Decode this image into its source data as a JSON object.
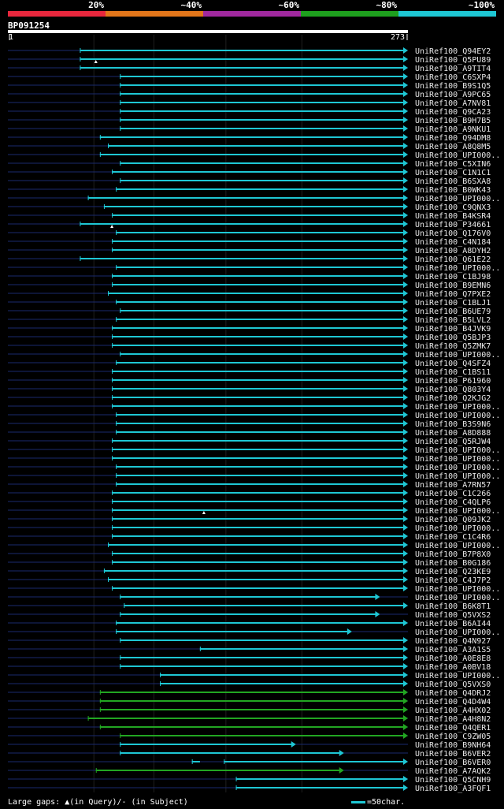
{
  "scale": {
    "labels": [
      "20%",
      "~40%",
      "~60%",
      "~80%",
      "~100%"
    ],
    "colors": [
      "#e8273d",
      "#e2761a",
      "#a0299e",
      "#1e9f1e",
      "#1ec7d4"
    ]
  },
  "query": {
    "id": "BP091254",
    "start": "1",
    "end": "273"
  },
  "colors": {
    "teal": "#1ec7d4",
    "green": "#22a622",
    "dark": "#1a2a6e"
  },
  "hits": [
    {
      "label": "UniRef100_Q94EY2",
      "segments": [
        [
          0.18,
          1.0,
          "teal"
        ]
      ],
      "marks": []
    },
    {
      "label": "UniRef100_Q5PU89",
      "segments": [
        [
          0.18,
          1.0,
          "teal"
        ]
      ],
      "marks": [
        0.22
      ]
    },
    {
      "label": "UniRef100_A9TIT4",
      "segments": [
        [
          0.18,
          1.0,
          "teal"
        ]
      ],
      "marks": []
    },
    {
      "label": "UniRef100_C6SXP4",
      "segments": [
        [
          0.28,
          1.0,
          "teal"
        ]
      ],
      "marks": []
    },
    {
      "label": "UniRef100_B9S1Q5",
      "segments": [
        [
          0.28,
          1.0,
          "teal"
        ]
      ],
      "marks": []
    },
    {
      "label": "UniRef100_A9PC65",
      "segments": [
        [
          0.28,
          1.0,
          "teal"
        ]
      ],
      "marks": []
    },
    {
      "label": "UniRef100_A7NV81",
      "segments": [
        [
          0.28,
          1.0,
          "teal"
        ]
      ],
      "marks": []
    },
    {
      "label": "UniRef100_Q9CA23",
      "segments": [
        [
          0.28,
          1.0,
          "teal"
        ]
      ],
      "marks": []
    },
    {
      "label": "UniRef100_B9H7B5",
      "segments": [
        [
          0.28,
          1.0,
          "teal"
        ]
      ],
      "marks": []
    },
    {
      "label": "UniRef100_A9NKU1",
      "segments": [
        [
          0.28,
          1.0,
          "teal"
        ]
      ],
      "marks": []
    },
    {
      "label": "UniRef100_Q94DM8",
      "segments": [
        [
          0.23,
          1.0,
          "teal"
        ]
      ],
      "marks": []
    },
    {
      "label": "UniRef100_A8Q8M5",
      "segments": [
        [
          0.25,
          1.0,
          "teal"
        ]
      ],
      "marks": []
    },
    {
      "label": "UniRef100_UPI000..",
      "segments": [
        [
          0.23,
          1.0,
          "teal"
        ]
      ],
      "marks": []
    },
    {
      "label": "UniRef100_C5XIN6",
      "segments": [
        [
          0.28,
          1.0,
          "teal"
        ]
      ],
      "marks": []
    },
    {
      "label": "UniRef100_C1N1C1",
      "segments": [
        [
          0.26,
          1.0,
          "teal"
        ]
      ],
      "marks": []
    },
    {
      "label": "UniRef100_B6SXA8",
      "segments": [
        [
          0.28,
          1.0,
          "teal"
        ]
      ],
      "marks": []
    },
    {
      "label": "UniRef100_B0WK43",
      "segments": [
        [
          0.27,
          1.0,
          "teal"
        ]
      ],
      "marks": []
    },
    {
      "label": "UniRef100_UPI000..",
      "segments": [
        [
          0.2,
          1.0,
          "teal"
        ]
      ],
      "marks": []
    },
    {
      "label": "UniRef100_C9QNX3",
      "segments": [
        [
          0.24,
          1.0,
          "teal"
        ]
      ],
      "marks": []
    },
    {
      "label": "UniRef100_B4KSR4",
      "segments": [
        [
          0.26,
          1.0,
          "teal"
        ]
      ],
      "marks": []
    },
    {
      "label": "UniRef100_P34661",
      "segments": [
        [
          0.18,
          1.0,
          "teal"
        ]
      ],
      "marks": [
        0.26
      ]
    },
    {
      "label": "UniRef100_Q176V0",
      "segments": [
        [
          0.27,
          1.0,
          "teal"
        ]
      ],
      "marks": []
    },
    {
      "label": "UniRef100_C4N184",
      "segments": [
        [
          0.26,
          1.0,
          "teal"
        ]
      ],
      "marks": []
    },
    {
      "label": "UniRef100_A8DYH2",
      "segments": [
        [
          0.26,
          1.0,
          "teal"
        ]
      ],
      "marks": []
    },
    {
      "label": "UniRef100_Q61E22",
      "segments": [
        [
          0.18,
          1.0,
          "teal"
        ]
      ],
      "marks": []
    },
    {
      "label": "UniRef100_UPI000..",
      "segments": [
        [
          0.27,
          1.0,
          "teal"
        ]
      ],
      "marks": []
    },
    {
      "label": "UniRef100_C1BJ98",
      "segments": [
        [
          0.26,
          1.0,
          "teal"
        ]
      ],
      "marks": []
    },
    {
      "label": "UniRef100_B9EMN6",
      "segments": [
        [
          0.26,
          1.0,
          "teal"
        ]
      ],
      "marks": []
    },
    {
      "label": "UniRef100_Q7PXE2",
      "segments": [
        [
          0.25,
          1.0,
          "teal"
        ]
      ],
      "marks": []
    },
    {
      "label": "UniRef100_C1BLJ1",
      "segments": [
        [
          0.27,
          1.0,
          "teal"
        ]
      ],
      "marks": []
    },
    {
      "label": "UniRef100_B6UE79",
      "segments": [
        [
          0.28,
          1.0,
          "teal"
        ]
      ],
      "marks": []
    },
    {
      "label": "UniRef100_B5LVL2",
      "segments": [
        [
          0.27,
          1.0,
          "teal"
        ]
      ],
      "marks": []
    },
    {
      "label": "UniRef100_B4JVK9",
      "segments": [
        [
          0.26,
          1.0,
          "teal"
        ]
      ],
      "marks": []
    },
    {
      "label": "UniRef100_Q5BJP3",
      "segments": [
        [
          0.26,
          1.0,
          "teal"
        ]
      ],
      "marks": []
    },
    {
      "label": "UniRef100_Q5ZMK7",
      "segments": [
        [
          0.26,
          1.0,
          "teal"
        ]
      ],
      "marks": []
    },
    {
      "label": "UniRef100_UPI000..",
      "segments": [
        [
          0.28,
          1.0,
          "teal"
        ]
      ],
      "marks": []
    },
    {
      "label": "UniRef100_Q4SFZ4",
      "segments": [
        [
          0.27,
          1.0,
          "teal"
        ]
      ],
      "marks": []
    },
    {
      "label": "UniRef100_C1BS11",
      "segments": [
        [
          0.26,
          1.0,
          "teal"
        ]
      ],
      "marks": []
    },
    {
      "label": "UniRef100_P61960",
      "segments": [
        [
          0.26,
          1.0,
          "teal"
        ]
      ],
      "marks": []
    },
    {
      "label": "UniRef100_Q803Y4",
      "segments": [
        [
          0.26,
          1.0,
          "teal"
        ]
      ],
      "marks": []
    },
    {
      "label": "UniRef100_Q2KJG2",
      "segments": [
        [
          0.26,
          1.0,
          "teal"
        ]
      ],
      "marks": []
    },
    {
      "label": "UniRef100_UPI000..",
      "segments": [
        [
          0.26,
          1.0,
          "teal"
        ]
      ],
      "marks": []
    },
    {
      "label": "UniRef100_UPI000..",
      "segments": [
        [
          0.27,
          1.0,
          "teal"
        ]
      ],
      "marks": []
    },
    {
      "label": "UniRef100_B3S9N6",
      "segments": [
        [
          0.27,
          1.0,
          "teal"
        ]
      ],
      "marks": []
    },
    {
      "label": "UniRef100_A8D888",
      "segments": [
        [
          0.27,
          1.0,
          "teal"
        ]
      ],
      "marks": []
    },
    {
      "label": "UniRef100_Q5RJW4",
      "segments": [
        [
          0.26,
          1.0,
          "teal"
        ]
      ],
      "marks": []
    },
    {
      "label": "UniRef100_UPI000..",
      "segments": [
        [
          0.26,
          1.0,
          "teal"
        ]
      ],
      "marks": []
    },
    {
      "label": "UniRef100_UPI000..",
      "segments": [
        [
          0.26,
          1.0,
          "teal"
        ]
      ],
      "marks": []
    },
    {
      "label": "UniRef100_UPI000..",
      "segments": [
        [
          0.27,
          1.0,
          "teal"
        ]
      ],
      "marks": []
    },
    {
      "label": "UniRef100_UPI000..",
      "segments": [
        [
          0.27,
          1.0,
          "teal"
        ]
      ],
      "marks": []
    },
    {
      "label": "UniRef100_A7RN57",
      "segments": [
        [
          0.27,
          1.0,
          "teal"
        ]
      ],
      "marks": []
    },
    {
      "label": "UniRef100_C1C266",
      "segments": [
        [
          0.26,
          1.0,
          "teal"
        ]
      ],
      "marks": []
    },
    {
      "label": "UniRef100_C4QLP6",
      "segments": [
        [
          0.26,
          1.0,
          "teal"
        ]
      ],
      "marks": []
    },
    {
      "label": "UniRef100_UPI000..",
      "segments": [
        [
          0.26,
          1.0,
          "teal"
        ]
      ],
      "marks": [
        0.49
      ]
    },
    {
      "label": "UniRef100_Q09JK2",
      "segments": [
        [
          0.26,
          1.0,
          "teal"
        ]
      ],
      "marks": []
    },
    {
      "label": "UniRef100_UPI000..",
      "segments": [
        [
          0.26,
          1.0,
          "teal"
        ]
      ],
      "marks": []
    },
    {
      "label": "UniRef100_C1C4R6",
      "segments": [
        [
          0.26,
          1.0,
          "teal"
        ]
      ],
      "marks": []
    },
    {
      "label": "UniRef100_UPI000..",
      "segments": [
        [
          0.25,
          1.0,
          "teal"
        ]
      ],
      "marks": []
    },
    {
      "label": "UniRef100_B7P8X0",
      "segments": [
        [
          0.26,
          1.0,
          "teal"
        ]
      ],
      "marks": []
    },
    {
      "label": "UniRef100_B0G186",
      "segments": [
        [
          0.26,
          1.0,
          "teal"
        ]
      ],
      "marks": []
    },
    {
      "label": "UniRef100_Q23KE9",
      "segments": [
        [
          0.24,
          1.0,
          "teal"
        ]
      ],
      "marks": []
    },
    {
      "label": "UniRef100_C4J7P2",
      "segments": [
        [
          0.25,
          1.0,
          "teal"
        ]
      ],
      "marks": []
    },
    {
      "label": "UniRef100_UPI000..",
      "segments": [
        [
          0.26,
          1.0,
          "teal"
        ]
      ],
      "marks": []
    },
    {
      "label": "UniRef100_UPI000..",
      "segments": [
        [
          0.28,
          0.93,
          "teal"
        ]
      ],
      "marks": []
    },
    {
      "label": "UniRef100_B6K8T1",
      "segments": [
        [
          0.29,
          1.0,
          "teal"
        ]
      ],
      "marks": []
    },
    {
      "label": "UniRef100_Q5VXS2",
      "segments": [
        [
          0.28,
          0.93,
          "teal"
        ]
      ],
      "marks": []
    },
    {
      "label": "UniRef100_B6AI44",
      "segments": [
        [
          0.27,
          1.0,
          "teal"
        ]
      ],
      "marks": []
    },
    {
      "label": "UniRef100_UPI000..",
      "segments": [
        [
          0.27,
          0.86,
          "teal"
        ]
      ],
      "marks": []
    },
    {
      "label": "UniRef100_Q4N927",
      "segments": [
        [
          0.28,
          1.0,
          "teal"
        ]
      ],
      "marks": []
    },
    {
      "label": "UniRef100_A3A1S5",
      "segments": [
        [
          0.48,
          1.0,
          "teal"
        ]
      ],
      "marks": []
    },
    {
      "label": "UniRef100_A0E8E8",
      "segments": [
        [
          0.28,
          1.0,
          "teal"
        ]
      ],
      "marks": []
    },
    {
      "label": "UniRef100_A0BV18",
      "segments": [
        [
          0.28,
          1.0,
          "teal"
        ]
      ],
      "marks": []
    },
    {
      "label": "UniRef100_UPI000..",
      "segments": [
        [
          0.38,
          1.0,
          "teal"
        ]
      ],
      "marks": []
    },
    {
      "label": "UniRef100_Q5VXS0",
      "segments": [
        [
          0.38,
          1.0,
          "teal"
        ]
      ],
      "marks": []
    },
    {
      "label": "UniRef100_Q4DRJ2",
      "segments": [
        [
          0.23,
          1.0,
          "green"
        ]
      ],
      "marks": []
    },
    {
      "label": "UniRef100_Q4D4W4",
      "segments": [
        [
          0.23,
          1.0,
          "green"
        ]
      ],
      "marks": []
    },
    {
      "label": "UniRef100_A4HX02",
      "segments": [
        [
          0.23,
          1.0,
          "green"
        ]
      ],
      "marks": []
    },
    {
      "label": "UniRef100_A4H8N2",
      "segments": [
        [
          0.2,
          1.0,
          "green"
        ]
      ],
      "marks": []
    },
    {
      "label": "UniRef100_Q4QER1",
      "segments": [
        [
          0.23,
          1.0,
          "green"
        ]
      ],
      "marks": []
    },
    {
      "label": "UniRef100_C9ZW05",
      "segments": [
        [
          0.28,
          1.0,
          "green"
        ]
      ],
      "marks": []
    },
    {
      "label": "UniRef100_B9NH64",
      "segments": [
        [
          0.28,
          0.72,
          "teal"
        ]
      ],
      "marks": []
    },
    {
      "label": "UniRef100_B6VER2",
      "segments": [
        [
          0.28,
          0.84,
          "teal"
        ]
      ],
      "marks": []
    },
    {
      "label": "UniRef100_B6VER0",
      "segments": [
        [
          0.46,
          0.49,
          "teal"
        ],
        [
          0.54,
          1.0,
          "teal"
        ]
      ],
      "marks": []
    },
    {
      "label": "UniRef100_A7AQK2",
      "segments": [
        [
          0.22,
          0.84,
          "green"
        ]
      ],
      "marks": []
    },
    {
      "label": "UniRef100_Q5CNH9",
      "segments": [
        [
          0.57,
          1.0,
          "teal"
        ]
      ],
      "marks": []
    },
    {
      "label": "UniRef100_A3FQF1",
      "segments": [
        [
          0.57,
          1.0,
          "teal"
        ]
      ],
      "marks": []
    }
  ],
  "footer": {
    "text": "Large gaps: ▲(in Query)/- (in Subject)"
  },
  "legend": {
    "text": "=50char."
  }
}
